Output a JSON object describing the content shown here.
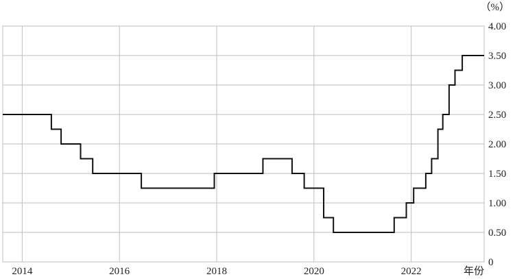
{
  "chart_data": {
    "type": "line",
    "step": true,
    "unit_label": "（%）",
    "xlabel": "年份",
    "ylabel": "",
    "title": "",
    "grid": true,
    "xlim": [
      2013.6,
      2023.5
    ],
    "ylim": [
      0,
      4.0
    ],
    "x_ticks": [
      2014,
      2016,
      2018,
      2020,
      2022
    ],
    "x_tick_labels": [
      "2014",
      "2016",
      "2018",
      "2020",
      "2022"
    ],
    "y_ticks": [
      0,
      0.5,
      1.0,
      1.5,
      2.0,
      2.5,
      3.0,
      3.5,
      4.0
    ],
    "y_tick_labels": [
      "0",
      "0.50",
      "1.00",
      "1.50",
      "2.00",
      "2.50",
      "3.00",
      "3.50",
      "4.00"
    ],
    "series": [
      {
        "points": [
          [
            2013.6,
            2.5
          ],
          [
            2014.6,
            2.25
          ],
          [
            2014.8,
            2.0
          ],
          [
            2015.2,
            1.75
          ],
          [
            2015.45,
            1.5
          ],
          [
            2016.45,
            1.25
          ],
          [
            2017.95,
            1.5
          ],
          [
            2018.95,
            1.75
          ],
          [
            2019.55,
            1.5
          ],
          [
            2019.8,
            1.25
          ],
          [
            2020.2,
            0.75
          ],
          [
            2020.4,
            0.5
          ],
          [
            2021.65,
            0.75
          ],
          [
            2021.9,
            1.0
          ],
          [
            2022.05,
            1.25
          ],
          [
            2022.3,
            1.5
          ],
          [
            2022.42,
            1.75
          ],
          [
            2022.55,
            2.25
          ],
          [
            2022.65,
            2.5
          ],
          [
            2022.78,
            3.0
          ],
          [
            2022.9,
            3.25
          ],
          [
            2023.05,
            3.5
          ],
          [
            2023.5,
            3.5
          ]
        ]
      }
    ]
  }
}
